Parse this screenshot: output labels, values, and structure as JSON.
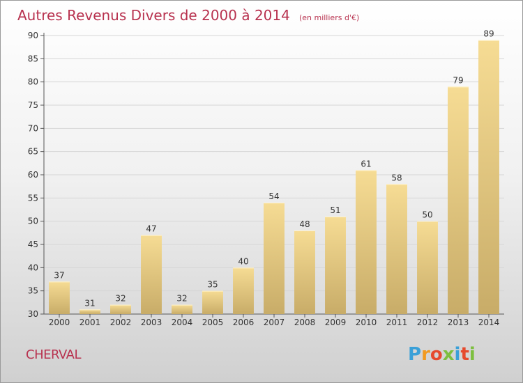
{
  "chart_data": {
    "type": "bar",
    "title": "Autres Revenus Divers de 2000 à 2014",
    "subtitle": "(en milliers d'€)",
    "categories": [
      "2000",
      "2001",
      "2002",
      "2003",
      "2004",
      "2005",
      "2006",
      "2007",
      "2008",
      "2009",
      "2010",
      "2011",
      "2012",
      "2013",
      "2014"
    ],
    "values": [
      37,
      31,
      32,
      47,
      32,
      35,
      40,
      54,
      48,
      51,
      61,
      58,
      50,
      79,
      89
    ],
    "ylim": [
      30,
      90
    ],
    "yticks": [
      30,
      35,
      40,
      45,
      50,
      55,
      60,
      65,
      70,
      75,
      80,
      85,
      90
    ],
    "grid": true,
    "bar_color_top": "#f6dc94",
    "bar_color_bottom": "#c8ac68"
  },
  "location": "CHERVAL",
  "logo": {
    "letters": [
      "P",
      "r",
      "o",
      "x",
      "i",
      "t",
      "i"
    ],
    "colors": [
      "#3aa0d8",
      "#f29a1f",
      "#e64a2e",
      "#7dbf3f",
      "#3aa0d8",
      "#e64a2e",
      "#7dbf3f"
    ]
  }
}
